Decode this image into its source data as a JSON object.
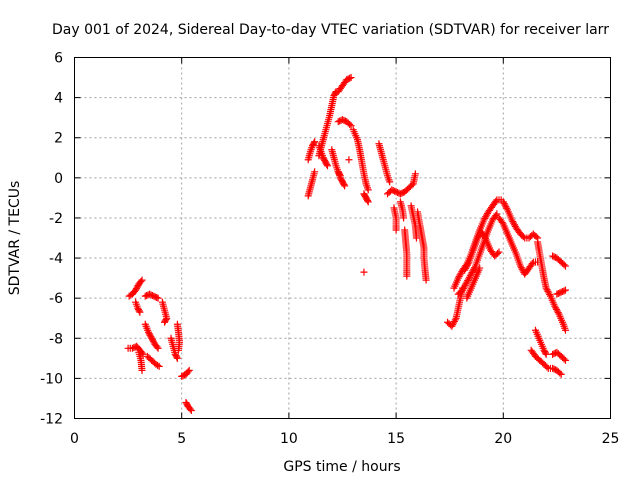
{
  "chart_data": {
    "type": "scatter",
    "title": "Day 001 of 2024, Sidereal Day-to-day VTEC variation (SDTVAR) for receiver larr",
    "xlabel": "GPS time / hours",
    "ylabel": "SDTVAR / TECUs",
    "xlim": [
      0,
      25
    ],
    "ylim": [
      -12,
      6
    ],
    "xticks": [
      0,
      5,
      10,
      15,
      20,
      25
    ],
    "yticks": [
      -12,
      -10,
      -8,
      -6,
      -4,
      -2,
      0,
      2,
      4,
      6
    ],
    "grid": true,
    "marker": "+",
    "color": "#ff0000",
    "series": [
      {
        "segments": [
          [
            [
              2.55,
              -5.9
            ],
            [
              2.7,
              -5.8
            ],
            [
              2.85,
              -5.6
            ],
            [
              3.0,
              -5.3
            ],
            [
              3.15,
              -5.1
            ]
          ],
          [
            [
              2.5,
              -8.5
            ],
            [
              2.7,
              -8.5
            ],
            [
              2.9,
              -8.4
            ],
            [
              3.05,
              -8.6
            ],
            [
              3.2,
              -8.8
            ]
          ],
          [
            [
              3.0,
              -8.7
            ],
            [
              3.1,
              -9.1
            ],
            [
              3.15,
              -9.6
            ]
          ],
          [
            [
              2.85,
              -6.2
            ],
            [
              2.95,
              -6.5
            ],
            [
              3.05,
              -6.7
            ]
          ],
          [
            [
              3.3,
              -5.9
            ],
            [
              3.5,
              -5.8
            ],
            [
              3.7,
              -5.9
            ],
            [
              3.9,
              -6.0
            ]
          ],
          [
            [
              3.3,
              -7.3
            ],
            [
              3.45,
              -7.7
            ],
            [
              3.6,
              -8.0
            ],
            [
              3.75,
              -8.3
            ],
            [
              3.9,
              -8.5
            ]
          ],
          [
            [
              3.4,
              -8.9
            ],
            [
              3.6,
              -9.1
            ],
            [
              3.8,
              -9.3
            ],
            [
              3.95,
              -9.4
            ]
          ],
          [
            [
              4.1,
              -6.2
            ],
            [
              4.2,
              -6.6
            ],
            [
              4.3,
              -7.0
            ],
            [
              4.2,
              -7.2
            ]
          ],
          [
            [
              4.5,
              -8.0
            ],
            [
              4.6,
              -8.4
            ],
            [
              4.7,
              -8.8
            ],
            [
              4.8,
              -9.0
            ]
          ],
          [
            [
              4.8,
              -7.3
            ],
            [
              4.85,
              -7.7
            ],
            [
              4.9,
              -8.2
            ],
            [
              4.85,
              -8.6
            ]
          ],
          [
            [
              5.0,
              -9.9
            ],
            [
              5.2,
              -9.8
            ],
            [
              5.35,
              -9.6
            ]
          ],
          [
            [
              5.2,
              -11.2
            ],
            [
              5.3,
              -11.4
            ],
            [
              5.45,
              -11.6
            ]
          ]
        ]
      },
      {
        "segments": [
          [
            [
              10.9,
              -0.9
            ],
            [
              11.0,
              -0.5
            ],
            [
              11.1,
              -0.1
            ],
            [
              11.2,
              0.3
            ]
          ],
          [
            [
              10.9,
              0.9
            ],
            [
              11.0,
              1.3
            ],
            [
              11.1,
              1.6
            ],
            [
              11.2,
              1.8
            ]
          ],
          [
            [
              11.4,
              1.1
            ],
            [
              11.5,
              1.5
            ],
            [
              11.6,
              1.9
            ],
            [
              11.7,
              2.3
            ],
            [
              11.8,
              2.7
            ],
            [
              11.9,
              3.1
            ],
            [
              12.0,
              3.6
            ],
            [
              12.1,
              4.1
            ],
            [
              12.2,
              4.3
            ]
          ],
          [
            [
              11.4,
              1.6
            ],
            [
              11.5,
              1.3
            ],
            [
              11.6,
              1.0
            ],
            [
              11.7,
              0.8
            ],
            [
              11.8,
              0.6
            ]
          ],
          [
            [
              12.0,
              1.4
            ],
            [
              12.1,
              1.0
            ],
            [
              12.2,
              0.6
            ],
            [
              12.3,
              0.3
            ],
            [
              12.4,
              0.1
            ]
          ],
          [
            [
              12.3,
              4.3
            ],
            [
              12.5,
              4.6
            ],
            [
              12.7,
              4.9
            ],
            [
              12.9,
              5.0
            ]
          ],
          [
            [
              12.3,
              2.8
            ],
            [
              12.5,
              2.9
            ],
            [
              12.7,
              2.8
            ],
            [
              12.9,
              2.6
            ]
          ],
          [
            [
              12.3,
              0.3
            ],
            [
              12.4,
              0.0
            ],
            [
              12.5,
              -0.2
            ],
            [
              12.6,
              -0.4
            ]
          ],
          [
            [
              12.8,
              0.9
            ]
          ],
          [
            [
              13.0,
              2.4
            ],
            [
              13.2,
              1.9
            ],
            [
              13.3,
              1.4
            ],
            [
              13.4,
              0.8
            ],
            [
              13.5,
              0.2
            ],
            [
              13.6,
              -0.3
            ],
            [
              13.7,
              -0.6
            ]
          ],
          [
            [
              13.5,
              -0.8
            ],
            [
              13.6,
              -1.0
            ],
            [
              13.7,
              -1.2
            ]
          ],
          [
            [
              13.5,
              -4.7
            ]
          ],
          [
            [
              14.2,
              1.7
            ],
            [
              14.3,
              1.3
            ],
            [
              14.4,
              0.9
            ],
            [
              14.5,
              0.5
            ],
            [
              14.6,
              0.1
            ],
            [
              14.7,
              -0.2
            ]
          ],
          [
            [
              14.6,
              -0.8
            ],
            [
              14.8,
              -0.6
            ],
            [
              15.0,
              -0.7
            ],
            [
              15.2,
              -0.8
            ],
            [
              15.4,
              -0.7
            ],
            [
              15.6,
              -0.5
            ],
            [
              15.8,
              -0.3
            ],
            [
              15.9,
              0.2
            ]
          ],
          [
            [
              14.9,
              -1.5
            ],
            [
              15.0,
              -2.0
            ],
            [
              15.0,
              -2.6
            ]
          ],
          [
            [
              15.2,
              -1.2
            ],
            [
              15.3,
              -1.6
            ],
            [
              15.35,
              -2.0
            ]
          ],
          [
            [
              15.4,
              -2.6
            ],
            [
              15.45,
              -3.2
            ],
            [
              15.5,
              -3.8
            ],
            [
              15.5,
              -4.4
            ],
            [
              15.5,
              -4.9
            ]
          ],
          [
            [
              15.7,
              -1.4
            ],
            [
              15.8,
              -1.9
            ],
            [
              15.9,
              -2.4
            ],
            [
              15.95,
              -3.0
            ]
          ],
          [
            [
              16.0,
              -1.7
            ],
            [
              16.1,
              -2.3
            ],
            [
              16.2,
              -2.9
            ],
            [
              16.3,
              -3.5
            ],
            [
              16.3,
              -4.0
            ],
            [
              16.35,
              -4.6
            ],
            [
              16.4,
              -5.1
            ]
          ]
        ]
      },
      {
        "segments": [
          [
            [
              17.4,
              -7.2
            ],
            [
              17.6,
              -7.4
            ],
            [
              17.8,
              -7.0
            ],
            [
              17.9,
              -6.5
            ],
            [
              18.0,
              -6.0
            ],
            [
              18.1,
              -5.5
            ]
          ],
          [
            [
              17.7,
              -5.5
            ],
            [
              17.9,
              -5.0
            ],
            [
              18.1,
              -4.6
            ],
            [
              18.3,
              -4.3
            ],
            [
              18.5,
              -3.8
            ],
            [
              18.7,
              -3.2
            ],
            [
              18.9,
              -2.6
            ],
            [
              19.1,
              -2.1
            ],
            [
              19.3,
              -1.7
            ],
            [
              19.5,
              -1.4
            ],
            [
              19.7,
              -1.1
            ],
            [
              19.9,
              -1.1
            ]
          ],
          [
            [
              17.9,
              -5.8
            ],
            [
              18.1,
              -5.6
            ],
            [
              18.3,
              -5.2
            ],
            [
              18.5,
              -4.8
            ],
            [
              18.7,
              -4.4
            ],
            [
              18.9,
              -3.8
            ],
            [
              19.1,
              -3.2
            ],
            [
              19.3,
              -2.6
            ],
            [
              19.5,
              -2.1
            ],
            [
              19.7,
              -1.8
            ]
          ],
          [
            [
              18.2,
              -4.6
            ],
            [
              18.4,
              -4.2
            ],
            [
              18.6,
              -3.6
            ],
            [
              18.8,
              -3.0
            ],
            [
              19.0,
              -2.7
            ],
            [
              19.2,
              -3.1
            ],
            [
              19.4,
              -3.6
            ],
            [
              19.6,
              -3.9
            ],
            [
              19.8,
              -3.7
            ]
          ],
          [
            [
              18.3,
              -6.0
            ],
            [
              18.5,
              -5.5
            ],
            [
              18.7,
              -5.0
            ],
            [
              18.9,
              -4.5
            ]
          ],
          [
            [
              19.8,
              -2.0
            ],
            [
              20.0,
              -2.3
            ],
            [
              20.2,
              -2.8
            ],
            [
              20.4,
              -3.3
            ],
            [
              20.6,
              -3.8
            ],
            [
              20.8,
              -4.4
            ],
            [
              21.0,
              -4.8
            ],
            [
              21.2,
              -4.5
            ],
            [
              21.4,
              -4.2
            ],
            [
              21.6,
              -4.2
            ]
          ],
          [
            [
              20.0,
              -1.2
            ],
            [
              20.2,
              -1.6
            ],
            [
              20.4,
              -2.1
            ],
            [
              20.6,
              -2.5
            ],
            [
              20.8,
              -2.8
            ],
            [
              21.0,
              -3.0
            ],
            [
              21.2,
              -3.0
            ],
            [
              21.4,
              -2.8
            ],
            [
              21.6,
              -3.0
            ]
          ],
          [
            [
              21.6,
              -3.2
            ],
            [
              21.7,
              -3.8
            ],
            [
              21.8,
              -4.4
            ],
            [
              21.9,
              -5.0
            ],
            [
              22.0,
              -5.5
            ],
            [
              22.2,
              -5.9
            ],
            [
              22.4,
              -6.4
            ],
            [
              22.6,
              -6.8
            ],
            [
              22.8,
              -7.3
            ],
            [
              22.9,
              -7.6
            ]
          ],
          [
            [
              22.5,
              -5.8
            ],
            [
              22.7,
              -5.7
            ],
            [
              22.9,
              -5.6
            ]
          ],
          [
            [
              22.3,
              -3.9
            ],
            [
              22.5,
              -4.0
            ],
            [
              22.7,
              -4.2
            ],
            [
              22.9,
              -4.4
            ]
          ],
          [
            [
              21.5,
              -7.6
            ],
            [
              21.7,
              -8.1
            ],
            [
              21.9,
              -8.6
            ],
            [
              22.0,
              -8.8
            ]
          ],
          [
            [
              21.3,
              -8.6
            ],
            [
              21.5,
              -8.9
            ],
            [
              21.7,
              -9.1
            ],
            [
              21.9,
              -9.3
            ],
            [
              22.1,
              -9.5
            ],
            [
              22.3,
              -9.5
            ],
            [
              22.5,
              -9.6
            ],
            [
              22.7,
              -9.8
            ]
          ],
          [
            [
              22.3,
              -8.8
            ],
            [
              22.5,
              -8.7
            ],
            [
              22.7,
              -8.9
            ],
            [
              22.9,
              -9.1
            ]
          ]
        ]
      }
    ]
  }
}
